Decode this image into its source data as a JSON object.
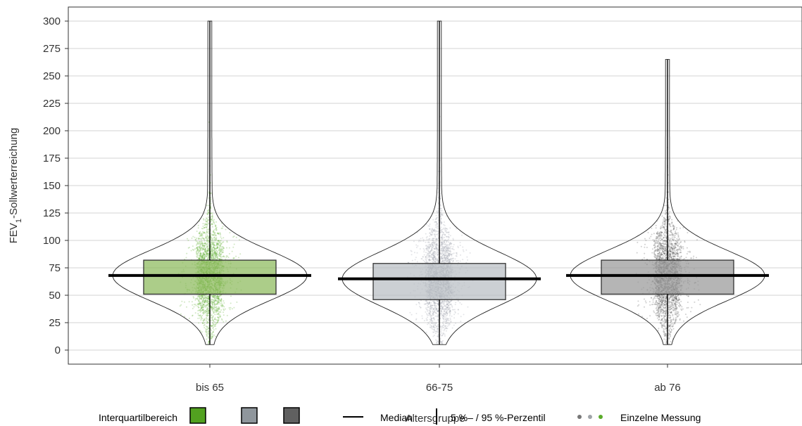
{
  "chart_data": {
    "type": "violin-box",
    "xlabel": "Altersgruppe",
    "ylabel": "FEV1-Sollwerterreichung",
    "ylabel_main": "FEV",
    "ylabel_sub": "1",
    "ylabel_rest": "-Sollwerterreichung",
    "ylim": [
      0,
      300
    ],
    "yticks": [
      0,
      25,
      50,
      75,
      100,
      125,
      150,
      175,
      200,
      225,
      250,
      275,
      300
    ],
    "grid": true,
    "categories": [
      "bis 65",
      "66-75",
      "ab 76"
    ],
    "groups": [
      {
        "category": "bis 65",
        "q1": 51,
        "median": 68,
        "q3": 82,
        "min": 5,
        "max": 300,
        "box_color": "#8cba5c",
        "point_color": "#5aab2a"
      },
      {
        "category": "66-75",
        "q1": 46,
        "median": 65,
        "q3": 79,
        "min": 5,
        "max": 300,
        "box_color": "#b9bec4",
        "point_color": "#9ea3ab"
      },
      {
        "category": "ab 76",
        "q1": 51,
        "median": 68,
        "q3": 82,
        "min": 5,
        "max": 265,
        "box_color": "#999999",
        "point_color": "#555555"
      }
    ],
    "legend": {
      "position": "bottom",
      "iqr_label": "Interquartilbereich",
      "iqr_colors": [
        "#52a120",
        "#8f969c",
        "#606060"
      ],
      "median_label": "Median",
      "percentile_label": "5 %– / 95 %-Perzentil",
      "points_label": "Einzelne Messung",
      "point_colors": [
        "#777777",
        "#a0a4a8",
        "#5aab2a"
      ]
    }
  }
}
